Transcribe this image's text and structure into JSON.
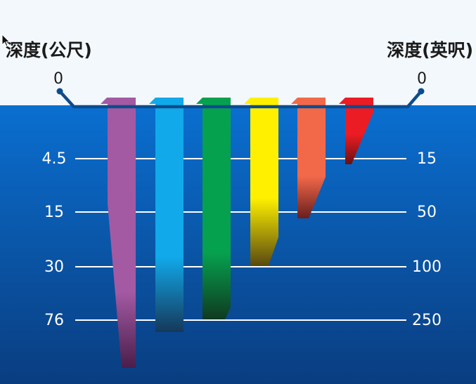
{
  "left_axis": {
    "title": "深度(公尺)",
    "labels": [
      "0",
      "4.5",
      "15",
      "30",
      "76"
    ]
  },
  "right_axis": {
    "title": "深度(英呎)",
    "labels": [
      "0",
      "15",
      "50",
      "100",
      "250"
    ]
  },
  "colors": {
    "sky": "#f3f8fd",
    "water_top": "#0a6fd0",
    "water_bottom": "#0a3d80",
    "surface_line": "#0d4c8c",
    "depth_line": "#ffffff"
  },
  "bars": [
    {
      "name": "purple",
      "color": "#a35aa3",
      "fade_color": "#4a1e4a"
    },
    {
      "name": "cyan",
      "color": "#11a9ea",
      "fade_color": "#15385a"
    },
    {
      "name": "green",
      "color": "#06a14f",
      "fade_color": "#0f3a20"
    },
    {
      "name": "yellow",
      "color": "#fff000",
      "fade_color": "#5a4a10"
    },
    {
      "name": "orange",
      "color": "#f2694a",
      "fade_color": "#6a1e1e"
    },
    {
      "name": "red",
      "color": "#ec1c24",
      "fade_color": "#6a1010"
    }
  ]
}
